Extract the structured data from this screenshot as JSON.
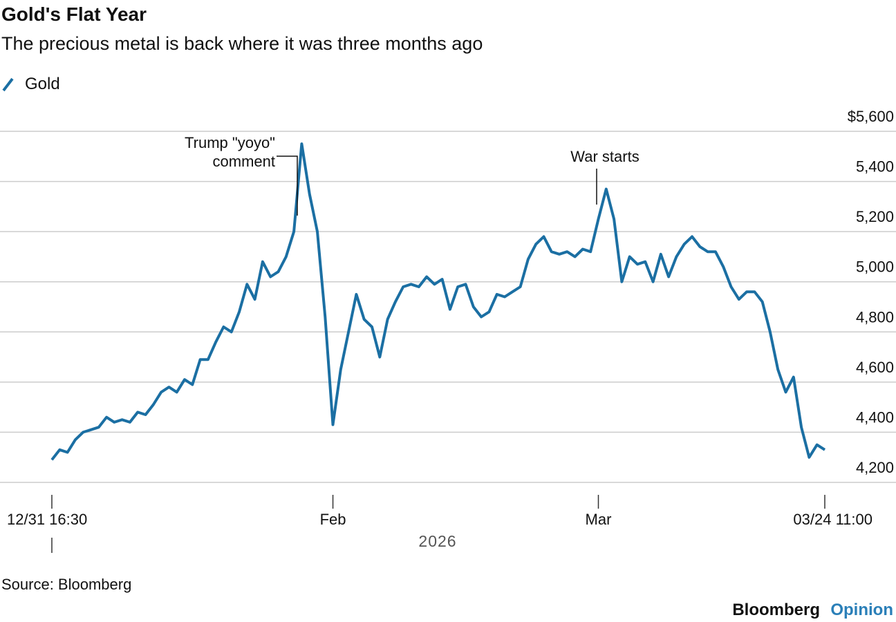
{
  "chart_data": {
    "type": "line",
    "title": "Gold's Flat Year",
    "subtitle": "The precious metal is back where it was three months ago",
    "categories": [
      "12/31 16:30",
      null,
      null,
      null,
      null,
      null,
      null,
      null,
      null,
      null,
      null,
      null,
      null,
      null,
      null,
      null,
      null,
      null,
      null,
      null,
      null,
      null,
      null,
      null,
      null,
      null,
      null,
      null,
      null,
      null,
      null,
      null,
      null,
      null,
      null,
      null,
      "Feb",
      null,
      null,
      null,
      null,
      null,
      null,
      null,
      null,
      null,
      null,
      null,
      null,
      null,
      null,
      null,
      null,
      null,
      null,
      null,
      null,
      null,
      null,
      null,
      null,
      null,
      null,
      null,
      null,
      null,
      null,
      null,
      null,
      null,
      "Mar",
      null,
      null,
      null,
      null,
      null,
      null,
      null,
      null,
      null,
      null,
      null,
      null,
      null,
      null,
      null,
      null,
      null,
      null,
      null,
      null,
      null,
      null,
      null,
      null,
      null,
      null,
      null,
      null,
      "03/24 11:00"
    ],
    "series": [
      {
        "name": "Gold",
        "color": "#1b6fa3",
        "values": [
          4290,
          4330,
          4320,
          4370,
          4400,
          4410,
          4420,
          4460,
          4440,
          4450,
          4440,
          4480,
          4470,
          4510,
          4560,
          4580,
          4560,
          4610,
          4590,
          4690,
          4690,
          4760,
          4820,
          4800,
          4880,
          4990,
          4930,
          5080,
          5020,
          5040,
          5100,
          5200,
          5550,
          5350,
          5200,
          4860,
          4430,
          4650,
          4800,
          4950,
          4850,
          4820,
          4700,
          4850,
          4920,
          4980,
          4990,
          4980,
          5020,
          4990,
          5010,
          4890,
          4980,
          4990,
          4900,
          4860,
          4880,
          4950,
          4940,
          4960,
          4980,
          5090,
          5150,
          5180,
          5120,
          5110,
          5120,
          5100,
          5130,
          5120,
          5250,
          5370,
          5250,
          5000,
          5100,
          5070,
          5080,
          5000,
          5110,
          5020,
          5100,
          5150,
          5180,
          5140,
          5120,
          5120,
          5060,
          4980,
          4930,
          4960,
          4960,
          4920,
          4800,
          4650,
          4560,
          4620,
          4420,
          4300,
          4350,
          4330
        ]
      }
    ],
    "ylim": [
      4200,
      5600
    ],
    "yticks": [
      {
        "value": 4200,
        "label": "4,200"
      },
      {
        "value": 4400,
        "label": "4,400"
      },
      {
        "value": 4600,
        "label": "4,600"
      },
      {
        "value": 4800,
        "label": "4,800"
      },
      {
        "value": 5000,
        "label": "5,000"
      },
      {
        "value": 5200,
        "label": "5,200"
      },
      {
        "value": 5400,
        "label": "5,400"
      },
      {
        "value": 5600,
        "label": "$5,600"
      }
    ],
    "grid": true,
    "year_label": "2026",
    "annotations": [
      {
        "lines": [
          "Trump \"yoyo\"",
          "comment"
        ]
      },
      {
        "lines": [
          "War starts"
        ]
      }
    ],
    "source": "Source: Bloomberg",
    "brand": [
      "Bloomberg",
      "Opinion"
    ]
  }
}
